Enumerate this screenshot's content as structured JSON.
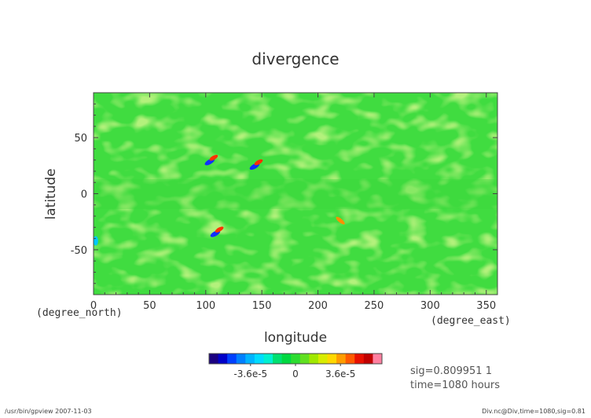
{
  "chart_data": {
    "type": "heatmap",
    "title": "divergence",
    "xlabel": "longitude",
    "ylabel": "latitude",
    "x_unit": "(degree_east)",
    "y_unit": "(degree_north)",
    "xlim": [
      0,
      360
    ],
    "ylim": [
      -90,
      90
    ],
    "x_ticks": [
      "0",
      "50",
      "100",
      "150",
      "200",
      "250",
      "300",
      "350"
    ],
    "y_ticks": [
      "50",
      "0",
      "-50"
    ],
    "colorbar": {
      "tick_labels": [
        "-3.6e-5",
        "0",
        "3.6e-5"
      ],
      "colors": [
        "#1a0080",
        "#0000c8",
        "#0040ff",
        "#0080ff",
        "#00b4ff",
        "#00dcff",
        "#00f0d0",
        "#00e070",
        "#00d840",
        "#2cdc30",
        "#60e020",
        "#a0e800",
        "#d8ec00",
        "#ffd800",
        "#ff9c00",
        "#ff5a00",
        "#e81000",
        "#c00000",
        "#ff80a0"
      ]
    },
    "features": [
      {
        "lon": 105,
        "lat": 30,
        "label": "dipole"
      },
      {
        "lon": 145,
        "lat": 26,
        "label": "dipole"
      },
      {
        "lon": 220,
        "lat": -24,
        "label": "positive"
      },
      {
        "lon": 110,
        "lat": -34,
        "label": "dipole"
      },
      {
        "lon": 2,
        "lat": -42,
        "label": "negative"
      }
    ]
  },
  "info": {
    "sig": "sig=0.809951 1",
    "time": "time=1080 hours"
  },
  "footer": {
    "left": "/usr/bin/gpview  2007-11-03",
    "right": "Div.nc@Div,time=1080,sig=0.81"
  }
}
